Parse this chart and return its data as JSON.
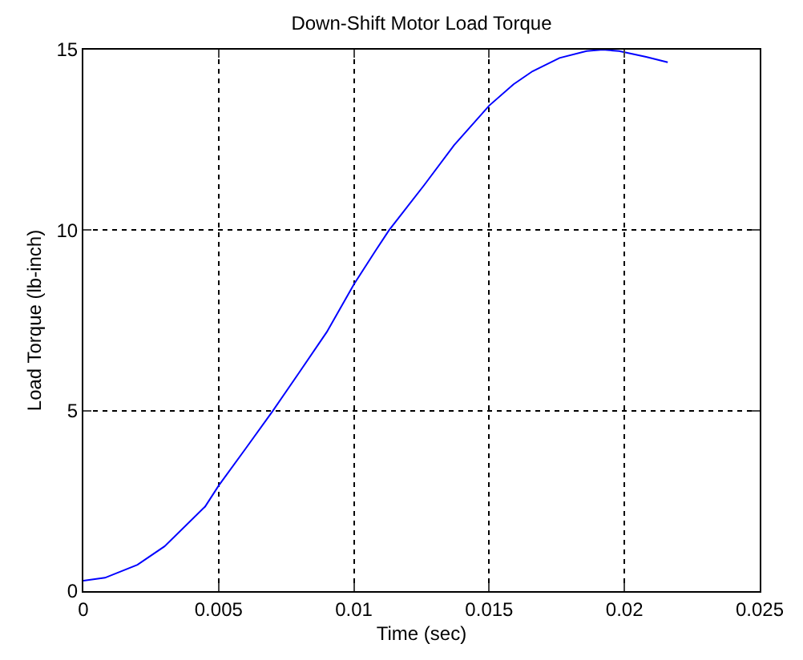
{
  "chart_data": {
    "type": "line",
    "title": "Down-Shift Motor Load Torque",
    "xlabel": "Time (sec)",
    "ylabel": "Load Torque (lb-inch)",
    "x": [
      0,
      0.0008,
      0.002,
      0.003,
      0.0045,
      0.005,
      0.006,
      0.007,
      0.008,
      0.009,
      0.01,
      0.0108,
      0.0113,
      0.0126,
      0.0137,
      0.015,
      0.0159,
      0.0166,
      0.0176,
      0.0186,
      0.0192,
      0.0198,
      0.0208,
      0.0216
    ],
    "series": [
      {
        "color": "#0000ff",
        "values": [
          0.29,
          0.37,
          0.73,
          1.24,
          2.34,
          2.92,
          3.95,
          4.99,
          6.08,
          7.18,
          8.5,
          9.43,
          10,
          11.25,
          12.35,
          13.45,
          14.04,
          14.4,
          14.77,
          14.96,
          15,
          14.96,
          14.8,
          14.65
        ]
      }
    ],
    "xlim": [
      0,
      0.025
    ],
    "xticks": [
      0,
      0.005,
      0.01,
      0.015,
      0.02,
      0.025
    ],
    "ylim": [
      0,
      15
    ],
    "yticks": [
      0,
      5,
      10,
      15
    ],
    "grid": true,
    "line_style": "solid",
    "marker": "none"
  }
}
